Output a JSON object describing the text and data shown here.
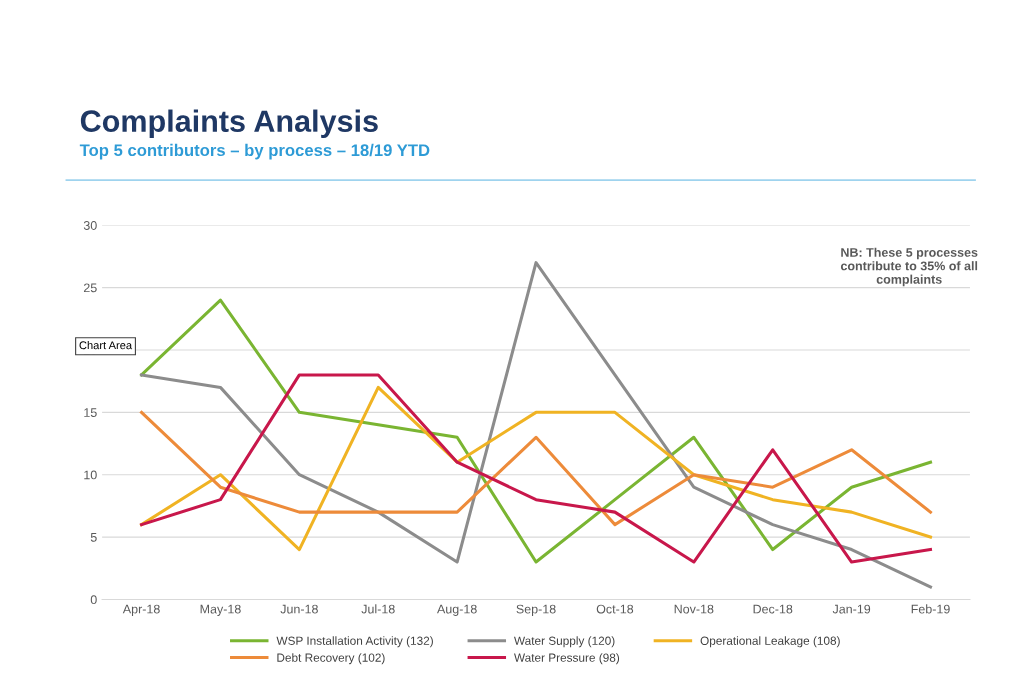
{
  "chart_data": {
    "type": "line",
    "title": "Complaints Analysis",
    "subtitle": "Top 5 contributors – by process – 18/19 YTD",
    "categories": [
      "Apr-18",
      "May-18",
      "Jun-18",
      "Jul-18",
      "Aug-18",
      "Sep-18",
      "Oct-18",
      "Nov-18",
      "Dec-18",
      "Jan-19",
      "Feb-19"
    ],
    "series": [
      {
        "name": "WSP Installation Activity (132)",
        "color": "#7ab532",
        "values": [
          18,
          24,
          15,
          14,
          13,
          3,
          8,
          13,
          4,
          9,
          11
        ]
      },
      {
        "name": "Water Supply (120)",
        "color": "#8c8c8c",
        "values": [
          18,
          17,
          10,
          7,
          3,
          27,
          18,
          9,
          6,
          4,
          1
        ]
      },
      {
        "name": "Operational Leakage (108)",
        "color": "#f0b323",
        "values": [
          6,
          10,
          4,
          17,
          11,
          15,
          15,
          10,
          8,
          7,
          5
        ]
      },
      {
        "name": "Debt Recovery (102)",
        "color": "#ed8b3a",
        "values": [
          15,
          9,
          7,
          7,
          7,
          13,
          6,
          10,
          9,
          12,
          7
        ]
      },
      {
        "name": "Water Pressure (98)",
        "color": "#c8174b",
        "values": [
          6,
          8,
          18,
          18,
          11,
          8,
          7,
          3,
          12,
          3,
          4
        ]
      }
    ],
    "ylim": [
      0,
      30
    ],
    "yticks": [
      0,
      5,
      10,
      15,
      20,
      25,
      30
    ],
    "grid": "y",
    "legend": "bottom",
    "marker": "none",
    "line_style": "solid",
    "annotations": [
      "NB: These 5 processes\ncontribute to 35% of all\ncomplaints",
      "Chart Area"
    ]
  }
}
